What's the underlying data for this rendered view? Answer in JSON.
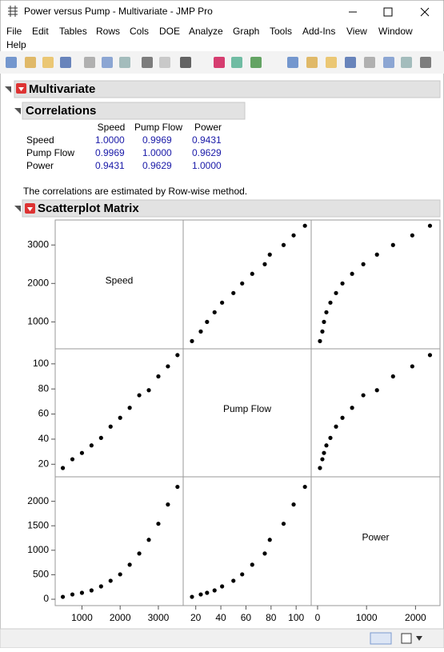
{
  "window": {
    "title": "Power versus Pump - Multivariate - JMP Pro"
  },
  "menu": [
    "File",
    "Edit",
    "Tables",
    "Rows",
    "Cols",
    "DOE",
    "Analyze",
    "Graph",
    "Tools",
    "Add-Ins",
    "View",
    "Window",
    "Help"
  ],
  "report": {
    "title": "Multivariate",
    "correlations": {
      "title": "Correlations",
      "columns": [
        "Speed",
        "Pump Flow",
        "Power"
      ],
      "rows": [
        {
          "label": "Speed",
          "cells": [
            "1.0000",
            "0.9969",
            "0.9431"
          ]
        },
        {
          "label": "Pump Flow",
          "cells": [
            "0.9969",
            "1.0000",
            "0.9629"
          ]
        },
        {
          "label": "Power",
          "cells": [
            "0.9431",
            "0.9629",
            "1.0000"
          ]
        }
      ],
      "note": "The correlations are estimated by Row-wise method."
    },
    "scatterplot_matrix": {
      "title": "Scatterplot Matrix",
      "variables": [
        {
          "name": "Speed",
          "values": [
            500,
            750,
            1000,
            1250,
            1500,
            1750,
            2000,
            2250,
            2500,
            2750,
            3000,
            3250,
            3500
          ],
          "lim": [
            300,
            3650
          ],
          "yticks": [
            1000,
            2000,
            3000
          ],
          "xticks": [
            1000,
            2000,
            3000
          ]
        },
        {
          "name": "Pump Flow",
          "values": [
            17,
            24,
            29,
            35,
            41,
            50,
            57,
            65,
            75,
            79,
            90,
            98,
            107
          ],
          "lim": [
            10,
            112
          ],
          "yticks": [
            20,
            40,
            60,
            80,
            100
          ],
          "xticks": [
            20,
            40,
            60,
            80,
            100
          ]
        },
        {
          "name": "Power",
          "values": [
            49,
            98,
            131,
            180,
            262,
            377,
            508,
            705,
            934,
            1213,
            1541,
            1934,
            2295
          ],
          "lim": [
            -130,
            2500
          ],
          "yticks": [
            0,
            500,
            1000,
            1500,
            2000
          ],
          "xticks": [
            0,
            1000,
            2000
          ]
        }
      ]
    }
  }
}
